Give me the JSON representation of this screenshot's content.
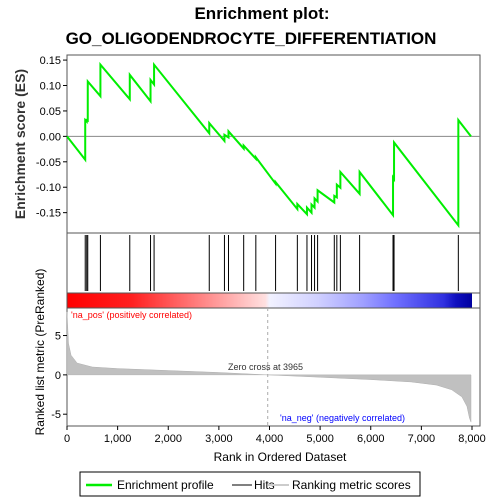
{
  "chart_data": {
    "type": "line",
    "title_line1": "Enrichment plot:",
    "title_line2": "GO_OLIGODENDROCYTE_DIFFERENTIATION",
    "es_ylabel": "Enrichment score (ES)",
    "metric_ylabel": "Ranked list metric (PreRanked)",
    "xlabel": "Rank in Ordered Dataset",
    "xlim": [
      0,
      8000
    ],
    "es_ylim": [
      -0.19,
      0.16
    ],
    "metric_ylim": [
      -6.5,
      8.5
    ],
    "x_ticks": [
      0,
      1000,
      2000,
      3000,
      4000,
      5000,
      6000,
      7000,
      8000
    ],
    "x_tick_labels": [
      "0",
      "1,000",
      "2,000",
      "3,000",
      "4,000",
      "5,000",
      "6,000",
      "7,000",
      "8,000"
    ],
    "es_ticks": [
      0.15,
      0.1,
      0.05,
      0.0,
      -0.05,
      -0.1,
      -0.15
    ],
    "es_tick_labels": [
      "0.15",
      "0.10",
      "0.05",
      "0.00",
      "-0.05",
      "-0.10",
      "-0.15"
    ],
    "metric_ticks": [
      5,
      0,
      -5
    ],
    "metric_tick_labels": [
      "5",
      "0",
      "-5"
    ],
    "pos_label": "'na_pos' (positively correlated)",
    "neg_label": "'na_neg' (negatively correlated)",
    "zero_cross_label": "Zero cross at 3965",
    "zero_cross": 3965,
    "hits": [
      360,
      390,
      410,
      660,
      1240,
      1650,
      1720,
      2810,
      3110,
      3190,
      3490,
      3730,
      4120,
      4550,
      4740,
      4830,
      4890,
      4950,
      5280,
      5330,
      5400,
      5780,
      6440,
      6460,
      7730
    ],
    "es_curve": [
      [
        0,
        0.0
      ],
      [
        360,
        -0.046
      ],
      [
        360,
        0.032
      ],
      [
        390,
        0.029
      ],
      [
        390,
        0.032
      ],
      [
        410,
        0.031
      ],
      [
        410,
        0.108
      ],
      [
        660,
        0.079
      ],
      [
        660,
        0.141
      ],
      [
        1240,
        0.073
      ],
      [
        1240,
        0.121
      ],
      [
        1650,
        0.069
      ],
      [
        1650,
        0.111
      ],
      [
        1720,
        0.102
      ],
      [
        1720,
        0.141
      ],
      [
        2810,
        0.006
      ],
      [
        2810,
        0.026
      ],
      [
        3110,
        -0.009
      ],
      [
        3110,
        0.003
      ],
      [
        3190,
        -0.002
      ],
      [
        3190,
        0.01
      ],
      [
        3490,
        -0.024
      ],
      [
        3490,
        -0.018
      ],
      [
        3730,
        -0.044
      ],
      [
        3730,
        -0.041
      ],
      [
        4120,
        -0.093
      ],
      [
        4120,
        -0.09
      ],
      [
        4550,
        -0.143
      ],
      [
        4550,
        -0.133
      ],
      [
        4740,
        -0.153
      ],
      [
        4740,
        -0.14
      ],
      [
        4830,
        -0.15
      ],
      [
        4830,
        -0.134
      ],
      [
        4890,
        -0.14
      ],
      [
        4890,
        -0.122
      ],
      [
        4950,
        -0.128
      ],
      [
        4950,
        -0.106
      ],
      [
        5280,
        -0.13
      ],
      [
        5280,
        -0.117
      ],
      [
        5330,
        -0.12
      ],
      [
        5330,
        -0.095
      ],
      [
        5400,
        -0.101
      ],
      [
        5400,
        -0.07
      ],
      [
        5780,
        -0.113
      ],
      [
        5780,
        -0.07
      ],
      [
        6440,
        -0.155
      ],
      [
        6440,
        -0.081
      ],
      [
        6460,
        -0.084
      ],
      [
        6460,
        -0.012
      ],
      [
        7730,
        -0.175
      ],
      [
        7730,
        0.032
      ],
      [
        7980,
        0.0
      ]
    ],
    "metric_shape": {
      "n": 7980,
      "points": [
        [
          0,
          8.0
        ],
        [
          30,
          4.0
        ],
        [
          80,
          2.5
        ],
        [
          200,
          1.5
        ],
        [
          500,
          1.0
        ],
        [
          1000,
          0.8
        ],
        [
          2000,
          0.55
        ],
        [
          3000,
          0.3
        ],
        [
          3965,
          0.0
        ],
        [
          5000,
          -0.3
        ],
        [
          6000,
          -0.6
        ],
        [
          6800,
          -0.9
        ],
        [
          7300,
          -1.3
        ],
        [
          7600,
          -1.9
        ],
        [
          7800,
          -2.8
        ],
        [
          7900,
          -4.0
        ],
        [
          7950,
          -5.5
        ],
        [
          7980,
          -6.0
        ]
      ]
    },
    "colors": {
      "es_line": "#00ee00",
      "hit_line": "#000000",
      "metric_fill": "#c0c0c0",
      "zero_line": "#c0c0c0",
      "pos_label": "#ff0000",
      "neg_label": "#0000ff",
      "gradient": [
        "#ff0000",
        "#ff5a5a",
        "#ff9a9a",
        "#ffd0d0",
        "#e8e8ff",
        "#c8c8ff",
        "#9090ff",
        "#5050ff",
        "#1010d0"
      ]
    },
    "legend": [
      {
        "label": "Enrichment profile",
        "color": "#00ee00",
        "kind": "line"
      },
      {
        "label": "Hits",
        "color": "#808080",
        "kind": "line"
      },
      {
        "label": "Ranking metric scores",
        "color": "#cccccc",
        "kind": "line"
      }
    ]
  }
}
